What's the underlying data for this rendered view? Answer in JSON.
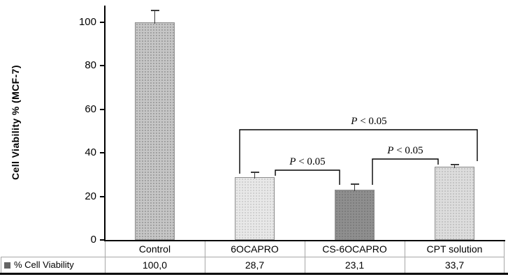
{
  "chart_data": {
    "type": "bar",
    "title": "",
    "categories": [
      "Control",
      "6OCAPRO",
      "CS-6OCAPRO",
      "CPT solution"
    ],
    "series": [
      {
        "name": "% Cell Viability",
        "values": [
          100.0,
          28.7,
          23.1,
          33.7
        ]
      }
    ],
    "error_bars_plus": [
      5.5,
      2.5,
      2.5,
      1.0
    ],
    "ylabel": "Cell Viability % (MCF-7)",
    "xlabel": "",
    "yticks": [
      0,
      20,
      40,
      60,
      80,
      100
    ],
    "ylim": [
      0,
      110
    ],
    "grid": false,
    "legend_position": "table-row-left",
    "bar_colors": [
      {
        "fill": "#c6c6c6",
        "dot": "#9a9a9a"
      },
      {
        "fill": "#e8e8e8",
        "dot": "#cccccc"
      },
      {
        "fill": "#8f8f8f",
        "dot": "#7a7a7a"
      },
      {
        "fill": "#dddddd",
        "dot": "#bfbfbf"
      }
    ],
    "annotations": [
      {
        "label": "P < 0.05",
        "between": [
          "6OCAPRO",
          "CPT solution"
        ]
      },
      {
        "label": "P < 0.05",
        "between": [
          "6OCAPRO",
          "CS-6OCAPRO"
        ]
      },
      {
        "label": "P < 0.05",
        "between": [
          "CS-6OCAPRO",
          "CPT solution"
        ]
      }
    ],
    "table": {
      "row_label": "% Cell Viability",
      "values": [
        "100,0",
        "28,7",
        "23,1",
        "33,7"
      ]
    }
  }
}
